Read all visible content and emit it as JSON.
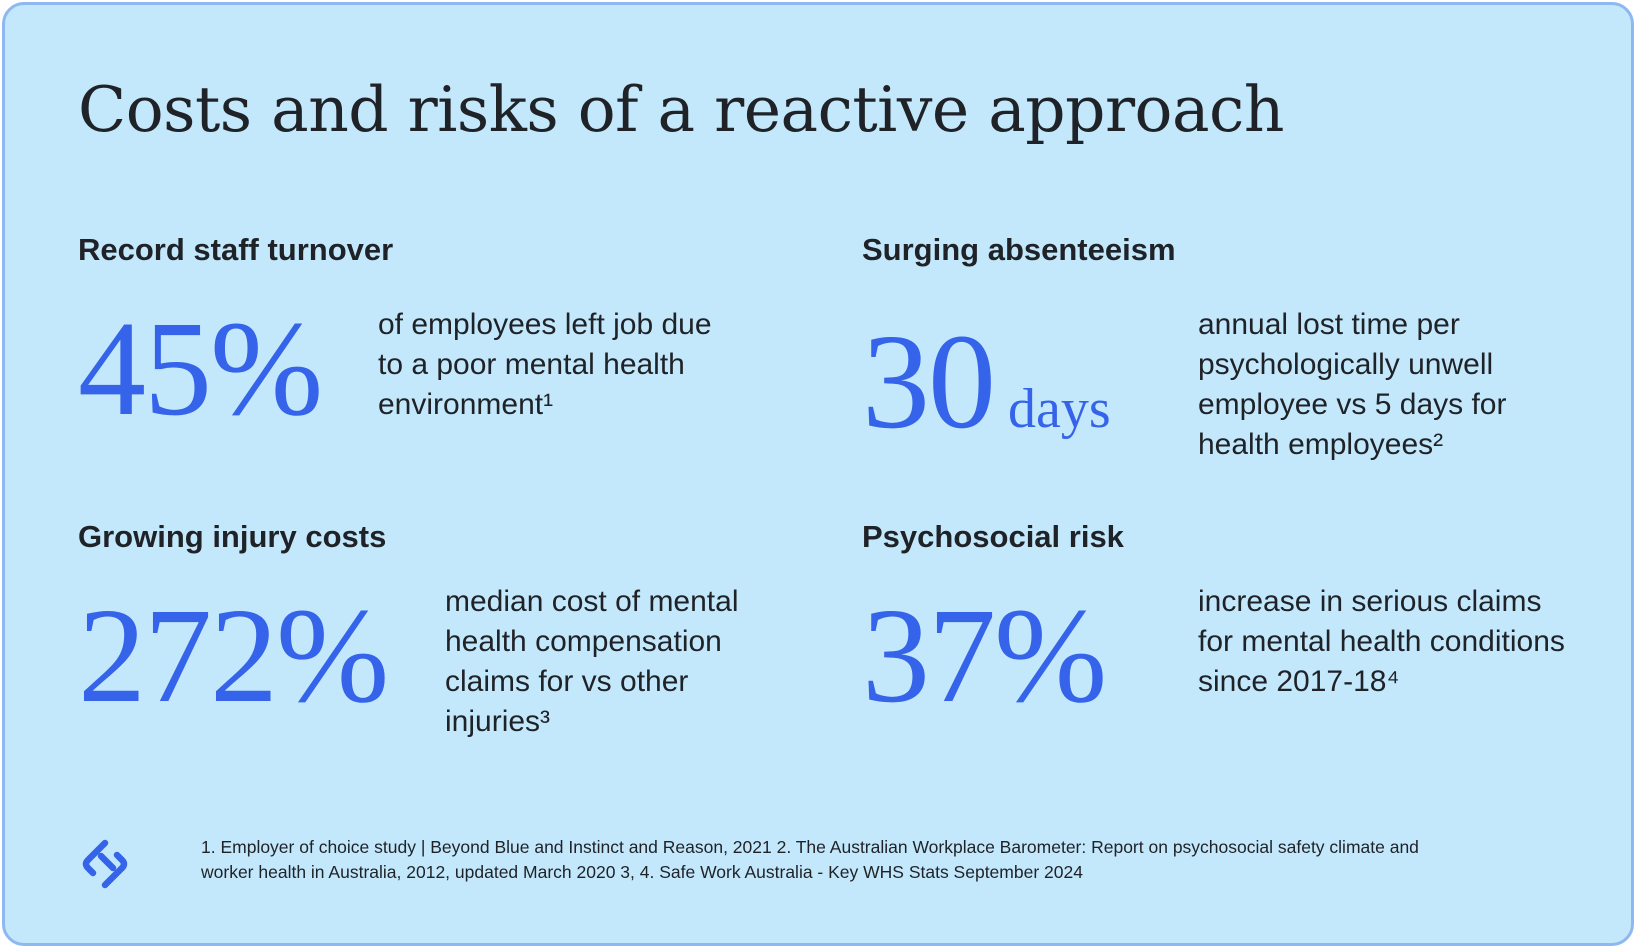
{
  "title": "Costs and risks of a reactive approach",
  "stats": [
    {
      "heading": "Record staff turnover",
      "value": "45%",
      "unit": "",
      "description": "of employees left job due to a poor mental health environment¹"
    },
    {
      "heading": "Surging absenteeism",
      "value": "30",
      "unit": "days",
      "description": "annual lost time per psychologically unwell employee vs 5 days for health employees²"
    },
    {
      "heading": "Growing injury costs",
      "value": "272%",
      "unit": "",
      "description": "median cost of mental health compensation claims for vs other injuries³"
    },
    {
      "heading": "Psychosocial risk",
      "value": "37%",
      "unit": "",
      "description": "increase in serious claims for mental health conditions since 2017-18⁴"
    }
  ],
  "footnote": "1. Employer of choice study | Beyond Blue and Instinct and Reason, 2021 2. The Australian Workplace Barometer: Report on psychosocial safety climate and worker health in Australia, 2012, updated March 2020 3, 4. Safe Work Australia - Key WHS Stats September 2024",
  "colors": {
    "background": "#c3e8fc",
    "border": "#8fb8f0",
    "accent": "#3563e9",
    "text": "#1f2227"
  },
  "logo": {
    "icon": "brand-s-logo-icon"
  }
}
